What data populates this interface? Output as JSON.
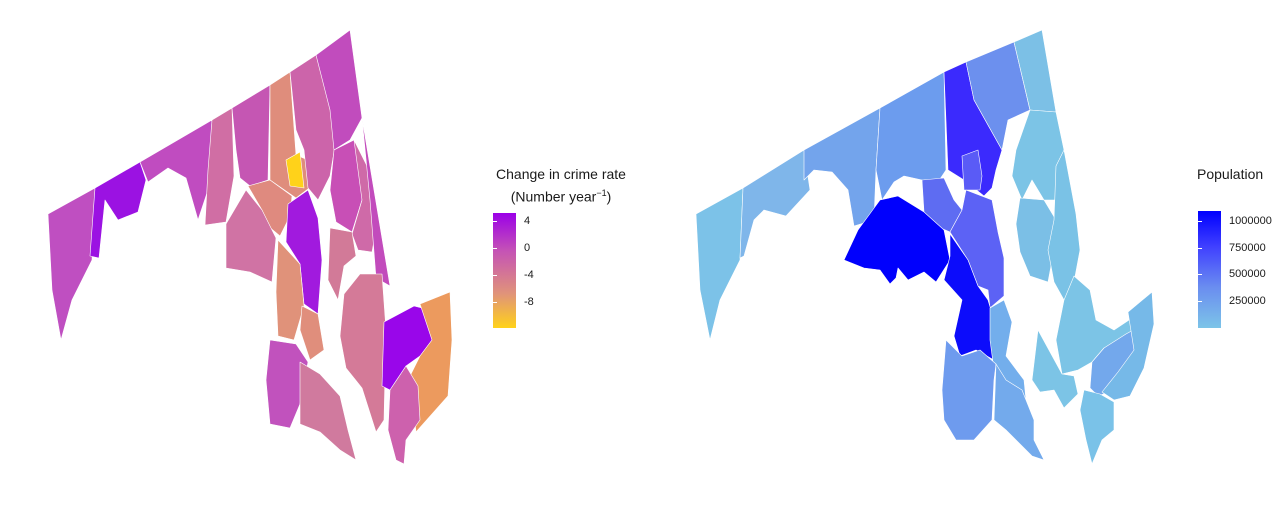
{
  "left_legend": {
    "title_line1": "Change in crime rate",
    "title_line2_main": "(Number year",
    "title_line2_sup": "−1",
    "title_line2_end": ")",
    "ticks": [
      "4",
      "0",
      "-4",
      "-8"
    ],
    "colors": [
      "#9b00e8",
      "#c553b5",
      "#e0937a",
      "#ffd21a"
    ]
  },
  "right_legend": {
    "title": "Population",
    "ticks": [
      "1000000",
      "750000",
      "500000",
      "250000"
    ],
    "colors": [
      "#0000ff",
      "#3f3fff",
      "#6a8df0",
      "#7cc4e8"
    ]
  },
  "chart_data": [
    {
      "type": "choropleth",
      "variable": "Change in crime rate (Number year−1)",
      "scale": {
        "min": -10,
        "max": 5,
        "breaks": [
          4,
          0,
          -4,
          -8
        ]
      }
    },
    {
      "type": "choropleth",
      "variable": "Population",
      "scale": {
        "min": 0,
        "max": 1100000,
        "breaks": [
          1000000,
          750000,
          500000,
          250000
        ]
      }
    }
  ]
}
